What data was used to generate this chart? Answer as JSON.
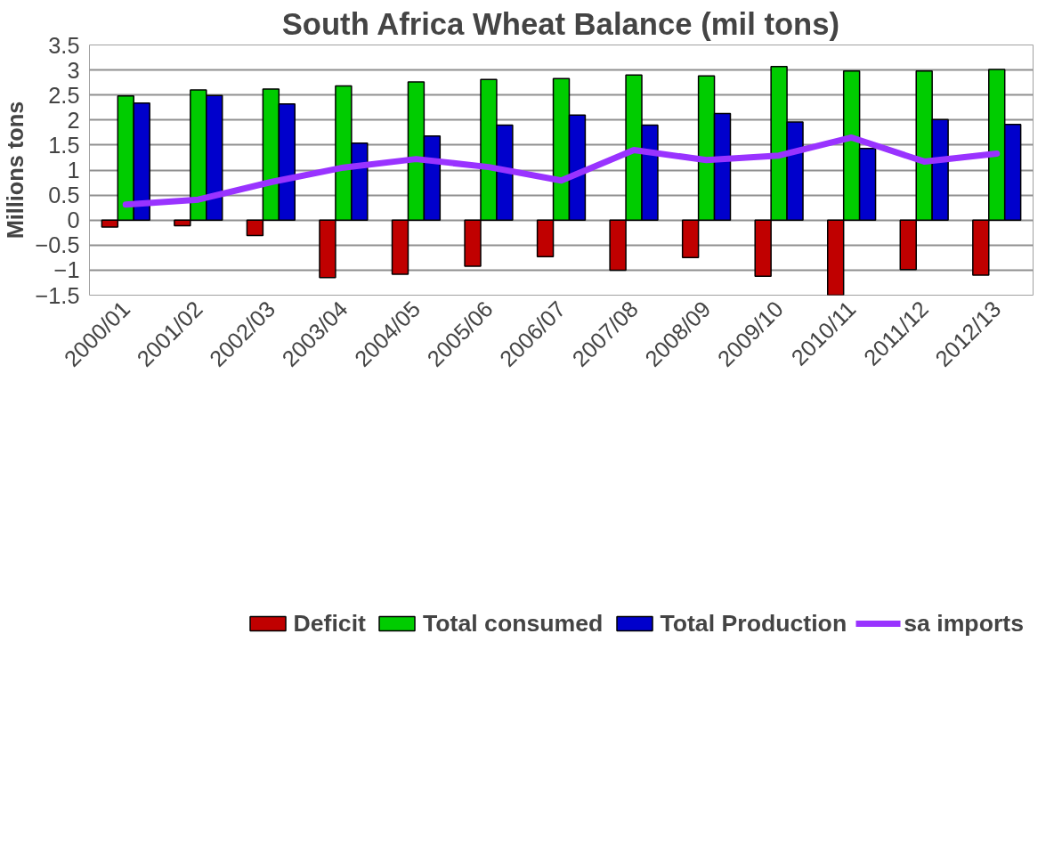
{
  "chart_data": {
    "type": "bar",
    "title": "South Africa Wheat Balance (mil tons)",
    "ylabel": "Millions tons",
    "categories": [
      "2000/01",
      "2001/02",
      "2002/03",
      "2003/04",
      "2004/05",
      "2005/06",
      "2006/07",
      "2007/08",
      "2008/09",
      "2009/10",
      "2010/11",
      "2011/12",
      "2012/13"
    ],
    "series": [
      {
        "name": "Deficit",
        "color": "#c00000",
        "values": [
          -0.14,
          -0.11,
          -0.31,
          -1.15,
          -1.08,
          -0.92,
          -0.73,
          -1.0,
          -0.75,
          -1.12,
          -1.5,
          -0.99,
          -1.1
        ]
      },
      {
        "name": "Total consumed",
        "color": "#00cc00",
        "values": [
          2.48,
          2.6,
          2.62,
          2.68,
          2.76,
          2.81,
          2.83,
          2.9,
          2.88,
          3.07,
          2.98,
          2.98,
          3.01
        ]
      },
      {
        "name": "Total Production",
        "color": "#0000cc",
        "values": [
          2.34,
          2.49,
          2.32,
          1.54,
          1.68,
          1.9,
          2.1,
          1.9,
          2.13,
          1.96,
          1.43,
          2.01,
          1.91
        ]
      },
      {
        "name": "sa imports",
        "color": "#9933ff",
        "type": "line",
        "values": [
          0.31,
          0.41,
          0.76,
          1.05,
          1.22,
          1.06,
          0.79,
          1.4,
          1.2,
          1.29,
          1.65,
          1.17,
          1.33
        ]
      }
    ],
    "ylim": [
      -1.5,
      3.5
    ],
    "yticks": [
      -1.5,
      -1,
      -0.5,
      0,
      0.5,
      1,
      1.5,
      2,
      2.5,
      3,
      3.5
    ],
    "grid": "y",
    "legend": "bottom"
  }
}
